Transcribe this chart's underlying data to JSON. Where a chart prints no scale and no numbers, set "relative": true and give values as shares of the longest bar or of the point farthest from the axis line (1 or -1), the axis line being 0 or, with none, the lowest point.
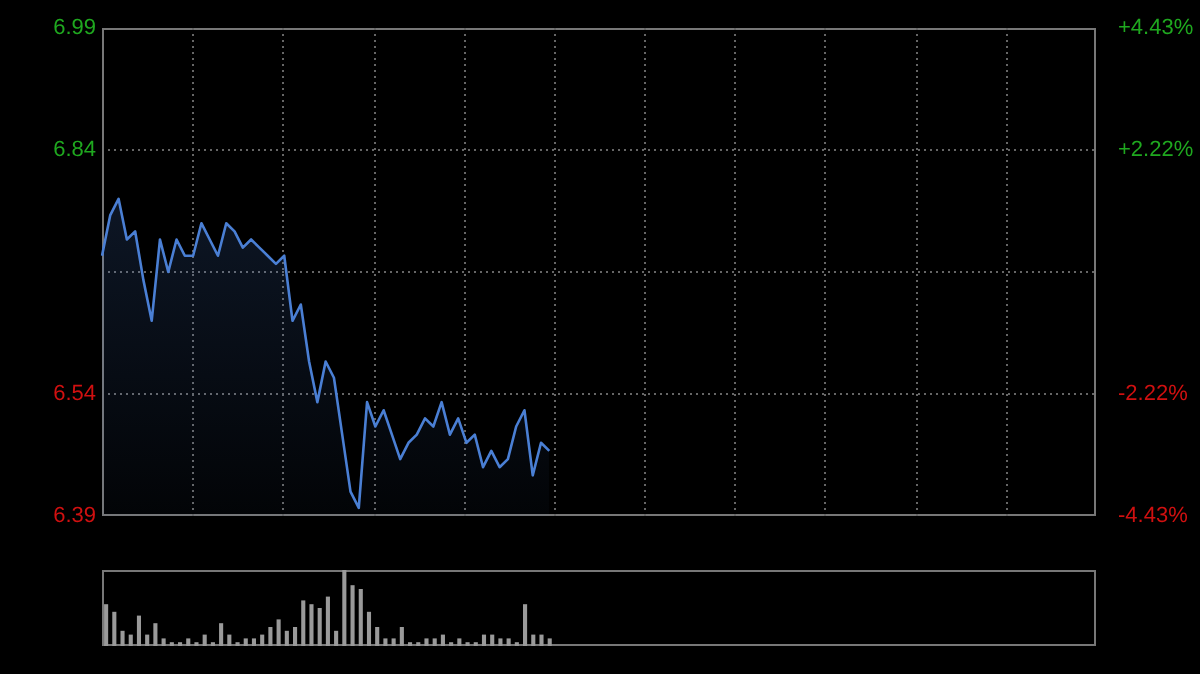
{
  "chart_data": [
    {
      "type": "area",
      "categories": [
        null,
        null,
        null,
        null,
        null,
        null,
        null,
        null,
        null,
        null,
        null,
        null,
        null,
        null,
        null,
        null,
        null,
        null,
        null,
        null,
        null,
        null,
        null,
        null,
        null,
        null,
        null,
        null,
        null,
        null,
        null,
        null,
        null,
        null,
        null,
        null,
        null,
        null,
        null,
        null,
        null,
        null,
        null,
        null,
        null,
        null,
        null,
        null,
        null,
        null,
        null,
        null,
        null,
        null,
        null,
        null,
        null,
        null,
        null,
        null,
        null,
        null,
        null,
        null,
        null,
        null,
        null,
        null,
        null,
        null,
        null,
        null,
        null,
        null,
        null,
        null,
        null,
        null,
        null,
        null,
        null,
        null,
        null,
        null,
        null,
        null,
        null,
        null,
        null,
        null,
        null,
        null,
        null,
        null,
        null,
        null,
        null,
        null,
        null,
        null,
        null,
        null,
        null,
        null,
        null,
        null,
        null,
        null,
        null,
        null,
        null,
        null,
        null,
        null,
        null,
        null,
        null,
        null,
        null,
        null,
        null
      ],
      "series": [
        {
          "color": "#4a7fd4",
          "values": [
            6.71,
            6.76,
            6.78,
            6.73,
            6.74,
            6.68,
            6.63,
            6.73,
            6.69,
            6.73,
            6.71,
            6.71,
            6.75,
            6.73,
            6.71,
            6.75,
            6.74,
            6.72,
            6.73,
            6.72,
            6.71,
            6.7,
            6.71,
            6.63,
            6.65,
            6.58,
            6.53,
            6.58,
            6.56,
            6.49,
            6.42,
            6.4,
            6.53,
            6.5,
            6.52,
            6.49,
            6.46,
            6.48,
            6.49,
            6.51,
            6.5,
            6.53,
            6.49,
            6.51,
            6.48,
            6.49,
            6.45,
            6.47,
            6.45,
            6.46,
            6.5,
            6.52,
            6.44,
            6.48,
            6.47,
            null,
            null,
            null,
            null,
            null,
            null,
            null,
            null,
            null,
            null,
            null,
            null,
            null,
            null,
            null,
            null,
            null,
            null,
            null,
            null,
            null,
            null,
            null,
            null,
            null,
            null,
            null,
            null,
            null,
            null,
            null,
            null,
            null,
            null,
            null,
            null,
            null,
            null,
            null,
            null,
            null,
            null,
            null,
            null,
            null,
            null,
            null,
            null,
            null,
            null,
            null,
            null,
            null,
            null,
            null,
            null,
            null,
            null,
            null,
            null,
            null,
            null,
            null,
            null,
            null,
            null
          ]
        }
      ],
      "ylim": [
        6.39,
        6.99
      ],
      "yticks": [
        6.39,
        6.54,
        {
          "value": 6.69,
          "label": null
        },
        6.84,
        6.99
      ],
      "y2lim": [
        -4.43,
        4.43
      ],
      "y2ticks": [
        {
          "value": -4.43,
          "label": "-4.43%"
        },
        {
          "value": -2.22,
          "label": "-2.22%"
        },
        {
          "value": 2.22,
          "label": "+2.22%"
        },
        {
          "value": 4.43,
          "label": "+4.43%"
        }
      ],
      "grid": true,
      "tick_labels": "y"
    },
    {
      "type": "bar",
      "relative": true,
      "categories": [
        null,
        null,
        null,
        null,
        null,
        null,
        null,
        null,
        null,
        null,
        null,
        null,
        null,
        null,
        null,
        null,
        null,
        null,
        null,
        null,
        null,
        null,
        null,
        null,
        null,
        null,
        null,
        null,
        null,
        null,
        null,
        null,
        null,
        null,
        null,
        null,
        null,
        null,
        null,
        null,
        null,
        null,
        null,
        null,
        null,
        null,
        null,
        null,
        null,
        null,
        null,
        null,
        null,
        null,
        null,
        null,
        null,
        null,
        null,
        null,
        null,
        null,
        null,
        null,
        null,
        null,
        null,
        null,
        null,
        null,
        null,
        null,
        null,
        null,
        null,
        null,
        null,
        null,
        null,
        null,
        null,
        null,
        null,
        null,
        null,
        null,
        null,
        null,
        null,
        null,
        null,
        null,
        null,
        null,
        null,
        null,
        null,
        null,
        null,
        null,
        null,
        null,
        null,
        null,
        null,
        null,
        null,
        null,
        null,
        null,
        null,
        null,
        null,
        null,
        null,
        null,
        null,
        null,
        null,
        null,
        null
      ],
      "color": "#9a9a9a",
      "values": [
        0.55,
        0.45,
        0.2,
        0.15,
        0.4,
        0.15,
        0.3,
        0.1,
        0.05,
        0.05,
        0.1,
        0.05,
        0.15,
        0.05,
        0.3,
        0.15,
        0.05,
        0.1,
        0.1,
        0.15,
        0.25,
        0.35,
        0.2,
        0.25,
        0.6,
        0.55,
        0.5,
        0.65,
        0.2,
        1,
        0.8,
        0.75,
        0.45,
        0.25,
        0.1,
        0.1,
        0.25,
        0.05,
        0.05,
        0.1,
        0.1,
        0.15,
        0.05,
        0.1,
        0.05,
        0.05,
        0.15,
        0.15,
        0.1,
        0.1,
        0.05,
        0.55,
        0.15,
        0.15,
        0.1,
        null,
        null,
        null,
        null,
        null,
        null,
        null,
        null,
        null,
        null,
        null,
        null,
        null,
        null,
        null,
        null,
        null,
        null,
        null,
        null,
        null,
        null,
        null,
        null,
        null,
        null,
        null,
        null,
        null,
        null,
        null,
        null,
        null,
        null,
        null,
        null,
        null,
        null,
        null,
        null,
        null,
        null,
        null,
        null,
        null,
        null,
        null,
        null,
        null,
        null,
        null,
        null,
        null,
        null,
        null,
        null,
        null,
        null,
        null,
        null,
        null,
        null,
        null,
        null,
        null,
        null
      ],
      "tick_labels": false
    }
  ]
}
